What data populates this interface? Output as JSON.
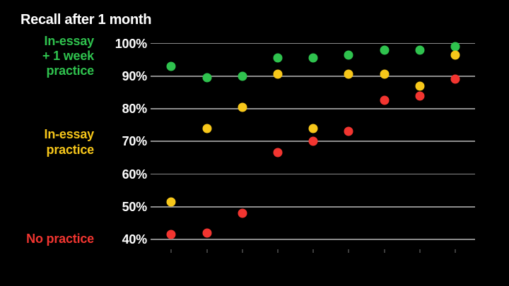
{
  "title": "Recall after 1 month",
  "colors": {
    "green": "#2fc24e",
    "yellow": "#f7c71a",
    "red": "#f23530",
    "gridline": "#8c8c8c",
    "tick": "#3d3d3d",
    "background": "#000000",
    "text": "#ffffff"
  },
  "series_labels": {
    "green": [
      "In-essay",
      "+ 1 week",
      "practice"
    ],
    "yellow": [
      "In-essay",
      "practice"
    ],
    "red": [
      "No practice"
    ]
  },
  "chart_data": {
    "type": "scatter",
    "title": "Recall after 1 month",
    "x_positions": [
      1,
      2,
      3,
      4,
      5,
      6,
      7,
      8,
      9
    ],
    "x_tick_labels": [
      "",
      "",
      "",
      "",
      "",
      "",
      "",
      "",
      ""
    ],
    "y_axis": {
      "min": 40,
      "max": 100,
      "step": 10,
      "tick_values": [
        100,
        90,
        80,
        70,
        60,
        50,
        40
      ],
      "tick_labels": [
        "100%",
        "90%",
        "80%",
        "70%",
        "60%",
        "50%",
        "40%"
      ],
      "unit": "%"
    },
    "grid": true,
    "legend_position": "left",
    "series": [
      {
        "name": "In-essay + 1 week practice",
        "color_key": "green",
        "color": "#2fc24e",
        "values": [
          93,
          89.5,
          90,
          95.5,
          95.5,
          96.5,
          98,
          98,
          99
        ]
      },
      {
        "name": "In-essay practice",
        "color_key": "yellow",
        "color": "#f7c71a",
        "values": [
          51.5,
          74,
          80.5,
          90.5,
          74,
          90.5,
          90.5,
          87,
          96.5
        ]
      },
      {
        "name": "No practice",
        "color_key": "red",
        "color": "#f23530",
        "values": [
          41.5,
          42,
          48,
          66.5,
          70,
          73,
          82.5,
          84,
          89
        ]
      }
    ]
  }
}
